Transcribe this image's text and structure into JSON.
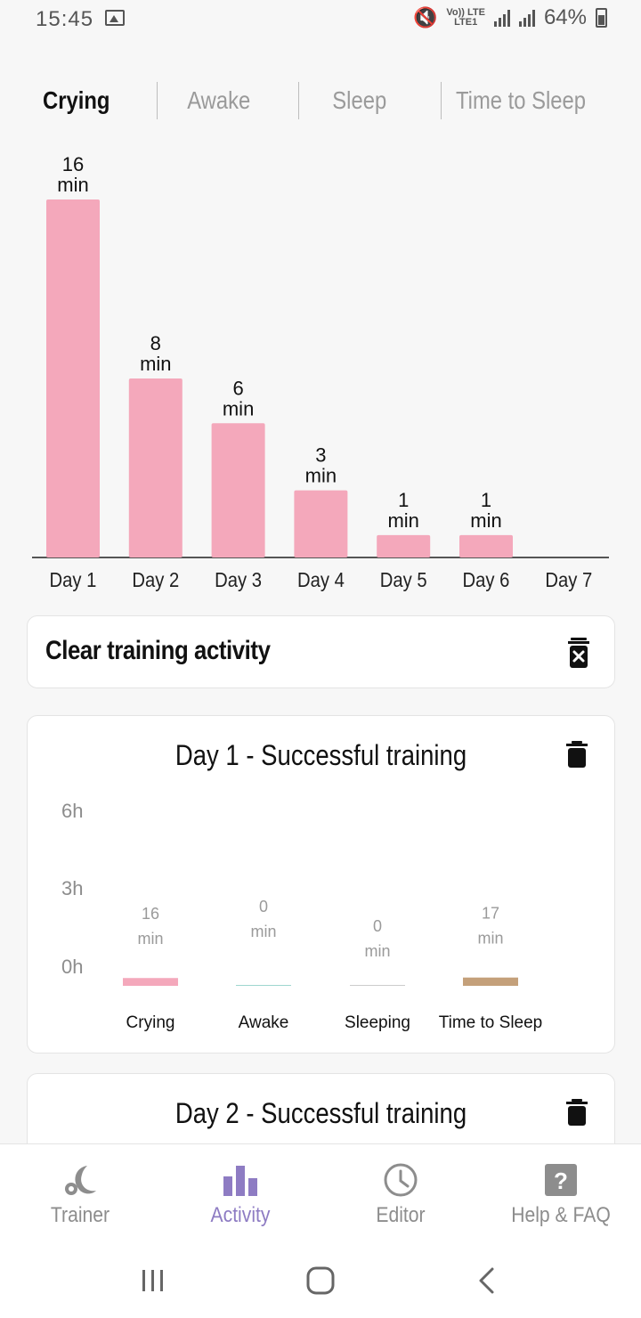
{
  "status_bar": {
    "time": "15:45",
    "net_top": "Vo)) LTE",
    "net_bottom": "LTE1",
    "battery": "64%"
  },
  "tabs": [
    {
      "label": "Crying",
      "active": true
    },
    {
      "label": "Awake",
      "active": false
    },
    {
      "label": "Sleep",
      "active": false
    },
    {
      "label": "Time to Sleep",
      "active": false
    }
  ],
  "chart_data": [
    {
      "type": "bar",
      "categories": [
        "Day 1",
        "Day 2",
        "Day 3",
        "Day 4",
        "Day 5",
        "Day 6",
        "Day 7"
      ],
      "values": [
        16,
        8,
        6,
        3,
        1,
        1,
        0
      ],
      "data_labels": [
        [
          "16",
          "min"
        ],
        [
          "8",
          "min"
        ],
        [
          "6",
          "min"
        ],
        [
          "3",
          "min"
        ],
        [
          "1",
          "min"
        ],
        [
          "1",
          "min"
        ],
        [
          "",
          ""
        ]
      ],
      "ylim": [
        0,
        16
      ],
      "bar_color": "#f4a8bb",
      "grid": false
    },
    {
      "type": "bar",
      "categories": [
        "Crying",
        "Awake",
        "Sleeping",
        "Time to Sleep"
      ],
      "values_min": [
        16,
        0,
        0,
        17
      ],
      "data_labels": [
        [
          "16",
          "min"
        ],
        [
          "0",
          "min"
        ],
        [
          "0",
          "min"
        ],
        [
          "17",
          "min"
        ]
      ],
      "y_ticks": [
        "6h",
        "3h",
        "0h"
      ],
      "ylim_min": [
        0,
        360
      ],
      "colors": [
        "#f4a8bb",
        "#9fd7cf",
        "#cccccc",
        "#c4a07a"
      ],
      "grid": false
    }
  ],
  "clear_card": {
    "label": "Clear training activity",
    "icon": "trash-x-icon"
  },
  "day_cards": [
    {
      "title": "Day 1 - Successful training",
      "icon": "trash-icon"
    },
    {
      "title": "Day 2 - Successful training",
      "icon": "trash-icon"
    }
  ],
  "bottom_nav": [
    {
      "label": "Trainer",
      "icon": "moon-icon",
      "active": false
    },
    {
      "label": "Activity",
      "icon": "bar-chart-icon",
      "active": true
    },
    {
      "label": "Editor",
      "icon": "clock-icon",
      "active": false
    },
    {
      "label": "Help & FAQ",
      "icon": "help-icon",
      "active": false
    }
  ],
  "colors": {
    "accent": "#8e7cc3",
    "crying": "#f4a8bb",
    "time_to_sleep": "#c4a07a"
  }
}
